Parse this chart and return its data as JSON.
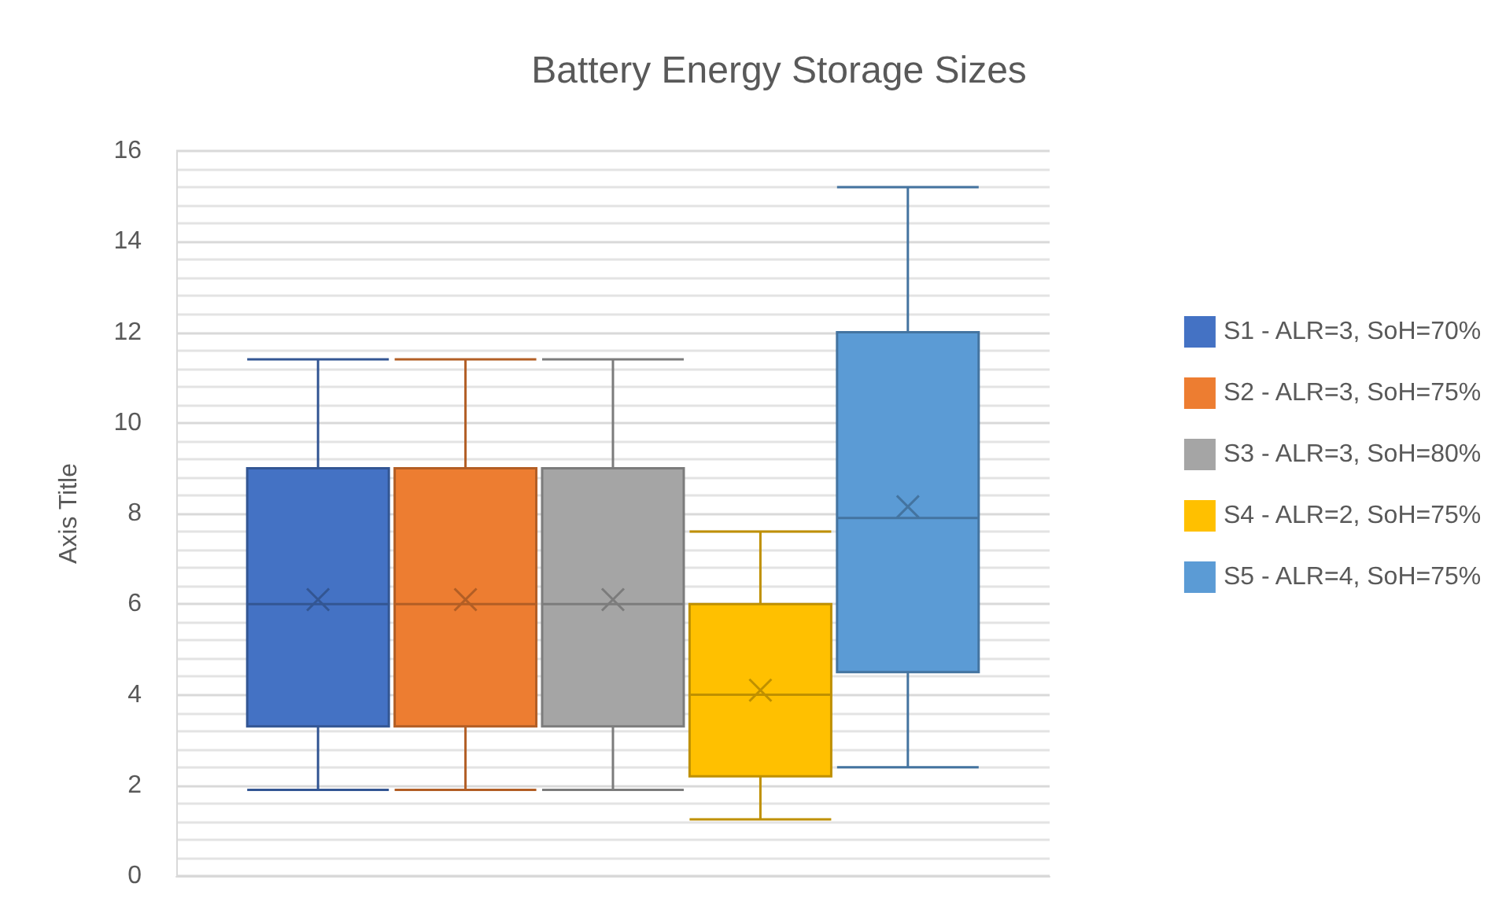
{
  "chart_data": {
    "type": "box",
    "title": "Battery Energy Storage Sizes",
    "ylabel": "Axis Title",
    "categories": [
      null
    ],
    "ylim": [
      0,
      16
    ],
    "yticks": [
      0,
      2,
      4,
      6,
      8,
      10,
      12,
      14,
      16
    ],
    "grid": true,
    "legend": "right",
    "marker": "cross",
    "series": [
      {
        "name": "S1 - ALR=3, SoH=70%",
        "color": "#4472c4",
        "boxes": [
          {
            "low": 1.9,
            "q1": 3.3,
            "median": 6,
            "q3": 9,
            "high": 11.4,
            "mean": 6.1
          }
        ]
      },
      {
        "name": "S2 - ALR=3, SoH=75%",
        "color": "#ed7d31",
        "boxes": [
          {
            "low": 1.9,
            "q1": 3.3,
            "median": 6,
            "q3": 9,
            "high": 11.4,
            "mean": 6.1
          }
        ]
      },
      {
        "name": "S3 - ALR=3, SoH=80%",
        "color": "#a5a5a5",
        "boxes": [
          {
            "low": 1.9,
            "q1": 3.3,
            "median": 6,
            "q3": 9,
            "high": 11.4,
            "mean": 6.1
          }
        ]
      },
      {
        "name": "S4 - ALR=2, SoH=75%",
        "color": "#ffc000",
        "boxes": [
          {
            "low": 1.25,
            "q1": 2.2,
            "median": 4,
            "q3": 6,
            "high": 7.6,
            "mean": 4.1
          }
        ]
      },
      {
        "name": "S5 - ALR=4, SoH=75%",
        "color": "#5b9bd5",
        "boxes": [
          {
            "low": 2.4,
            "q1": 4.5,
            "median": 7.9,
            "q3": 12,
            "high": 15.2,
            "mean": 8.15
          }
        ]
      }
    ]
  }
}
